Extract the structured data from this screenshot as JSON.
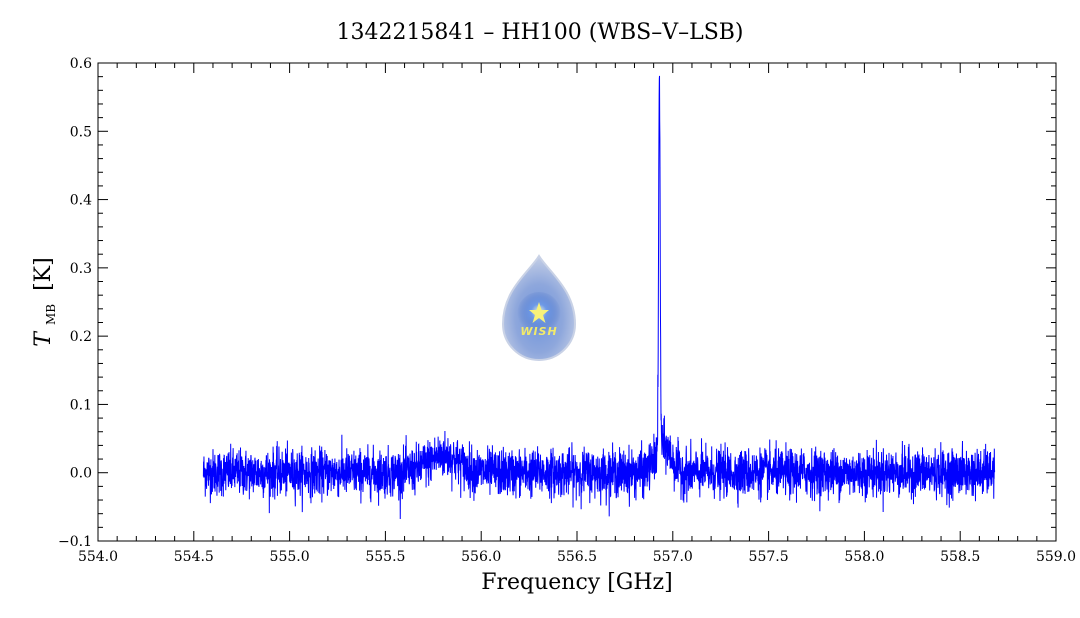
{
  "chart_data": {
    "type": "line",
    "title": "1342215841 – HH100 (WBS–V–LSB)",
    "xlabel": "Frequency [GHz]",
    "ylabel_symbol": "T",
    "ylabel_subscript": "MB",
    "ylabel_unit": "[K]",
    "xlim": [
      554.0,
      559.0
    ],
    "ylim": [
      -0.1,
      0.6
    ],
    "x_ticks": [
      "554.0",
      "554.5",
      "555.0",
      "555.5",
      "556.0",
      "556.5",
      "557.0",
      "557.5",
      "558.0",
      "558.5",
      "559.0"
    ],
    "y_ticks": [
      "−0.1",
      "0.0",
      "0.1",
      "0.2",
      "0.3",
      "0.4",
      "0.5",
      "0.6"
    ],
    "grid": false,
    "legend": "none",
    "series": [
      {
        "color": "#0000ff",
        "x_range": [
          554.55,
          558.68
        ],
        "baseline_noise_rms": 0.017,
        "features": [
          {
            "kind": "bump",
            "center": 555.8,
            "amplitude": 0.025,
            "width": 0.08
          },
          {
            "kind": "peak",
            "center": 556.93,
            "amplitude": 0.54,
            "width": 0.004
          },
          {
            "kind": "wing",
            "center": 556.95,
            "amplitude": 0.04,
            "width": 0.04
          }
        ]
      }
    ]
  },
  "logo": {
    "icon": "water-drop-star-icon",
    "text": "WISH",
    "colors": {
      "drop": "#a9b9df",
      "core": "#4f7fd0",
      "star": "#f7f27a"
    }
  }
}
